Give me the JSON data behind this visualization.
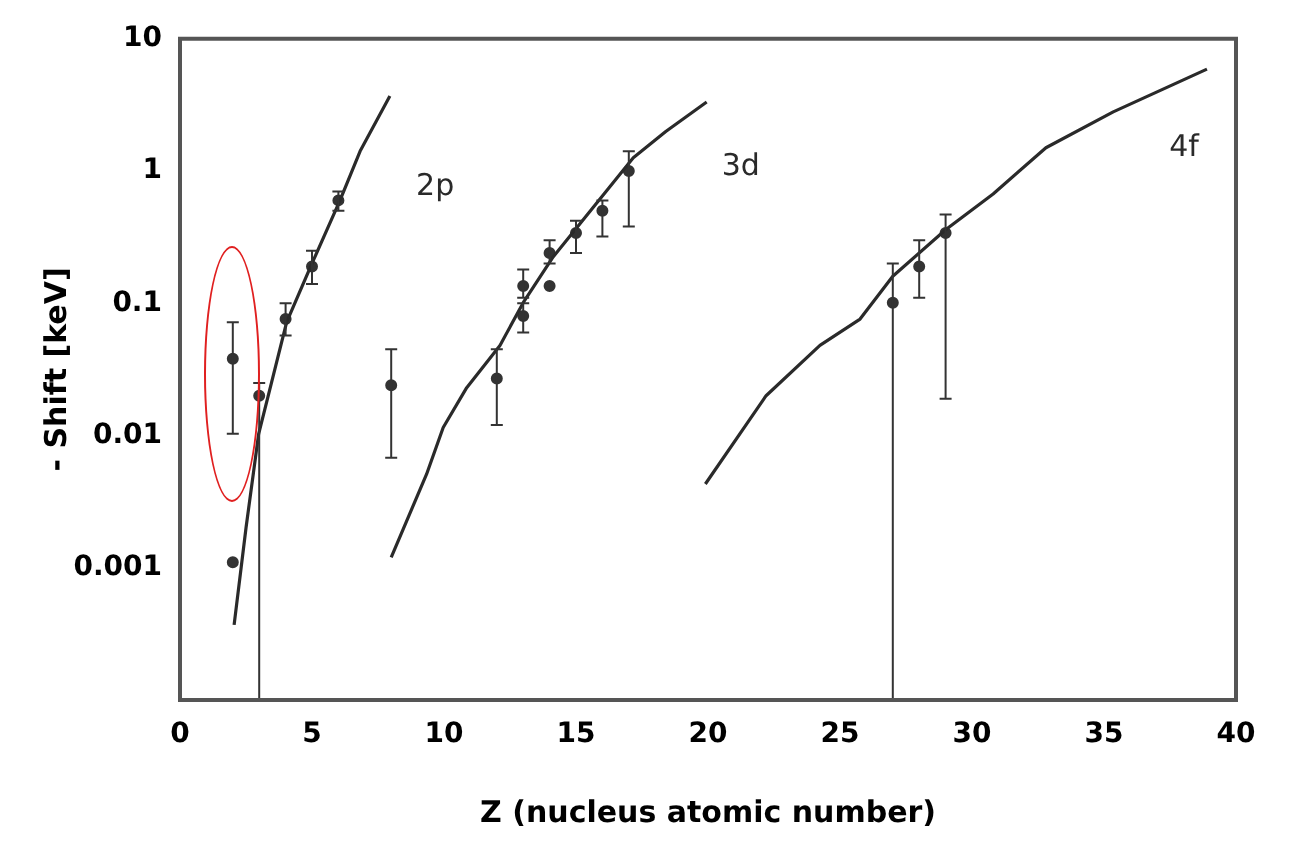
{
  "chart_data": {
    "type": "line",
    "xlabel": "Z (nucleus atomic number)",
    "ylabel": "- Shift [keV]",
    "log": "y",
    "grid": false,
    "legend": false,
    "line_style": "solid",
    "xlim": [
      0,
      40
    ],
    "xticks": [
      0,
      5,
      10,
      15,
      20,
      25,
      30,
      35,
      40
    ],
    "ylim": [
      0.0001,
      10
    ],
    "yticks": [
      0.001,
      0.01,
      0.1,
      1,
      10
    ],
    "series": [
      {
        "name": "2p",
        "color": "#2a2a2a",
        "marker": "none",
        "x": [
          2.05,
          2.5,
          2.98,
          4.04,
          5,
          6.06,
          6.82,
          7.95
        ],
        "values": [
          0.00037,
          0.002,
          0.0103,
          0.072,
          0.2,
          0.6,
          1.41,
          3.7
        ]
      },
      {
        "name": "3d",
        "color": "#2a2a2a",
        "marker": "none",
        "x": [
          8,
          9.34,
          9.97,
          10.86,
          12.12,
          13,
          14.14,
          15.15,
          16.16,
          17.17,
          18.4,
          19.95
        ],
        "values": [
          0.0012,
          0.0051,
          0.0115,
          0.023,
          0.048,
          0.101,
          0.225,
          0.4,
          0.71,
          1.26,
          1.99,
          3.33
        ]
      },
      {
        "name": "4f",
        "color": "#2a2a2a",
        "marker": "none",
        "x": [
          19.9,
          22.2,
          24.24,
          25.76,
          27,
          29,
          30.8,
          32.8,
          35.35,
          38.9
        ],
        "values": [
          0.0043,
          0.02,
          0.048,
          0.076,
          0.16,
          0.36,
          0.67,
          1.5,
          2.8,
          5.9
        ]
      },
      {
        "type": "scatter",
        "color": "#333333",
        "marker": "circle",
        "x": [
          2,
          2,
          3,
          4,
          5,
          6,
          8,
          12,
          13,
          13,
          14,
          14,
          15,
          16,
          17,
          27,
          28,
          29
        ],
        "values": [
          0.038,
          0.0011,
          0.02,
          0.076,
          0.19,
          0.6,
          0.024,
          0.027,
          0.135,
          0.08,
          0.24,
          0.135,
          0.34,
          0.5,
          1.0,
          0.101,
          0.19,
          0.34
        ],
        "errors": [
          [
            0.0103,
            0.072
          ],
          null,
          [
            0.0001,
            0.025
          ],
          [
            0.057,
            0.1
          ],
          [
            0.14,
            0.25
          ],
          [
            0.5,
            0.7
          ],
          [
            0.0068,
            0.045
          ],
          [
            0.012,
            0.045
          ],
          [
            0.11,
            0.18
          ],
          [
            0.06,
            0.1
          ],
          [
            0.2,
            0.3
          ],
          null,
          [
            0.24,
            0.42
          ],
          [
            0.32,
            0.6
          ],
          [
            0.38,
            1.41
          ],
          [
            0.0001,
            0.2
          ],
          [
            0.11,
            0.3
          ],
          [
            0.019,
            0.47
          ]
        ]
      }
    ]
  }
}
